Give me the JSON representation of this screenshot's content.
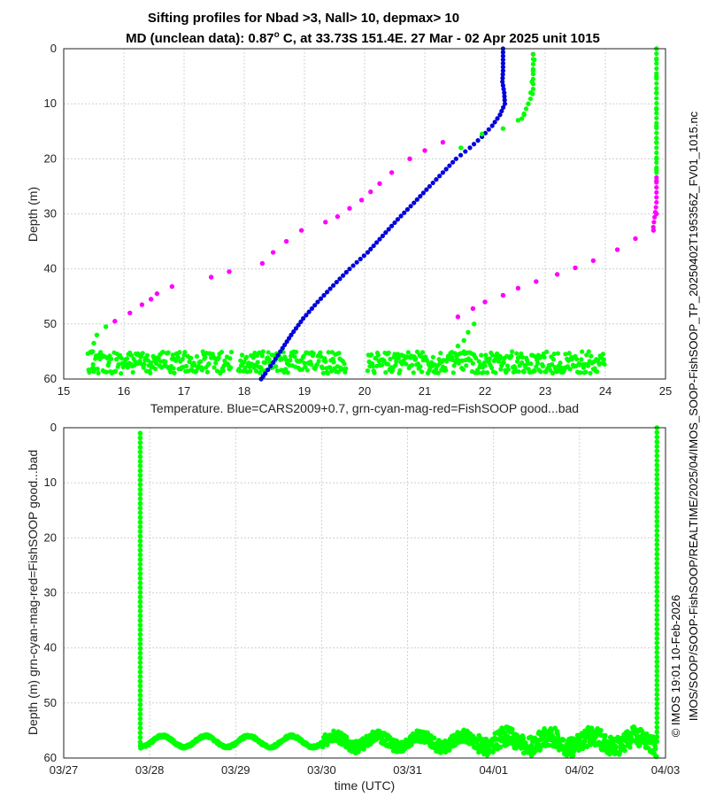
{
  "titles": {
    "line1": "Sifting profiles for Nbad >3, Nall> 10, depmax> 10",
    "line2_prefix": "MD (unclean data): 0.87",
    "line2_degree": "o",
    "line2_suffix": " C, at 33.73S 151.4E. 27 Mar - 02 Apr 2025 unit 1015"
  },
  "side_text": {
    "file_path": "IMOS/SOOP/SOOP-FishSOOP/REALTIME/2025/04/IMOS_SOOP-FishSOOP_TP_20250402T195356Z_FV01_1015.nc",
    "credit": "© IMOS 19:01 10-Feb-2026"
  },
  "colors": {
    "cars": "#0000dd",
    "good": "#00ff00",
    "bad": "#ff00ff",
    "grid": "#c8c8c8"
  },
  "chart_data": [
    {
      "type": "scatter",
      "title": "",
      "xlabel": "Temperature. Blue=CARS2009+0.7, grn-cyan-mag-red=FishSOOP good...bad",
      "ylabel": "Depth (m)",
      "xlim": [
        15,
        25
      ],
      "ylim": [
        60,
        0
      ],
      "xticks": [
        15,
        16,
        17,
        18,
        19,
        20,
        21,
        22,
        23,
        24,
        25
      ],
      "yticks": [
        0,
        10,
        20,
        30,
        40,
        50,
        60
      ],
      "grid": true,
      "series": [
        {
          "color_key": "cars",
          "points": [
            [
              22.3,
              0
            ],
            [
              22.3,
              2
            ],
            [
              22.3,
              4
            ],
            [
              22.29,
              6
            ],
            [
              22.32,
              8
            ],
            [
              22.33,
              10
            ],
            [
              22.25,
              12
            ],
            [
              22.12,
              14
            ],
            [
              21.95,
              16
            ],
            [
              21.75,
              18
            ],
            [
              21.52,
              20
            ],
            [
              21.3,
              22.5
            ],
            [
              21.08,
              25
            ],
            [
              20.82,
              28
            ],
            [
              20.55,
              31
            ],
            [
              20.3,
              34
            ],
            [
              20.05,
              37
            ],
            [
              19.75,
              40
            ],
            [
              19.48,
              43
            ],
            [
              19.22,
              46
            ],
            [
              18.98,
              49
            ],
            [
              18.78,
              52
            ],
            [
              18.6,
              55
            ],
            [
              18.48,
              57
            ],
            [
              18.35,
              59
            ],
            [
              18.28,
              60
            ]
          ]
        },
        {
          "color_key": "bad",
          "points": [
            [
              22.8,
              1
            ],
            [
              24.85,
              24
            ],
            [
              24.85,
              30
            ],
            [
              24.8,
              33
            ],
            [
              24.5,
              34.5
            ],
            [
              24.2,
              36.5
            ],
            [
              23.8,
              38.5
            ],
            [
              23.5,
              39.8
            ],
            [
              23.2,
              41
            ],
            [
              22.85,
              42.3
            ],
            [
              22.55,
              43.5
            ],
            [
              22.3,
              44.8
            ],
            [
              22.0,
              46
            ],
            [
              21.8,
              47.2
            ],
            [
              21.55,
              48.7
            ],
            [
              21.3,
              17
            ],
            [
              21.0,
              18.5
            ],
            [
              20.75,
              20
            ],
            [
              20.45,
              22.5
            ],
            [
              20.25,
              24.5
            ],
            [
              20.1,
              26
            ],
            [
              19.95,
              27.5
            ],
            [
              19.75,
              29
            ],
            [
              19.55,
              30.5
            ],
            [
              19.35,
              31.5
            ],
            [
              18.95,
              33
            ],
            [
              18.7,
              35
            ],
            [
              18.48,
              37
            ],
            [
              18.3,
              39
            ],
            [
              17.75,
              40.5
            ],
            [
              17.45,
              41.5
            ],
            [
              16.8,
              43.2
            ],
            [
              16.55,
              44.5
            ],
            [
              16.45,
              45.5
            ],
            [
              16.3,
              46.5
            ],
            [
              16.1,
              48
            ],
            [
              15.85,
              49.5
            ]
          ]
        },
        {
          "color_key": "good",
          "points": [
            [
              22.82,
              2
            ],
            [
              22.8,
              4
            ],
            [
              22.78,
              6
            ],
            [
              22.76,
              8
            ],
            [
              22.72,
              10
            ],
            [
              22.65,
              12
            ],
            [
              22.55,
              13
            ],
            [
              22.3,
              14.5
            ],
            [
              21.95,
              15.5
            ],
            [
              21.6,
              18
            ],
            [
              21.45,
              56
            ],
            [
              21.55,
              54
            ],
            [
              21.65,
              53
            ],
            [
              21.72,
              51.5
            ],
            [
              21.82,
              50
            ],
            [
              15.7,
              50.5
            ],
            [
              15.55,
              52
            ],
            [
              15.5,
              53.5
            ],
            [
              15.48,
              55
            ],
            [
              24.85,
              0
            ],
            [
              24.85,
              2
            ],
            [
              24.85,
              5
            ],
            [
              24.85,
              8
            ],
            [
              24.85,
              11
            ],
            [
              24.85,
              14
            ],
            [
              24.85,
              17
            ],
            [
              24.85,
              20
            ],
            [
              24.85,
              22
            ]
          ]
        },
        {
          "color_key": "good",
          "band": true,
          "segments": [
            [
              15.4,
              17.8
            ],
            [
              17.9,
              19.7
            ],
            [
              20.05,
              24.0
            ]
          ],
          "depth_range": [
            55,
            59
          ]
        }
      ]
    },
    {
      "type": "scatter",
      "title": "",
      "xlabel": "time (UTC)",
      "ylabel": "Depth (m) grn-cyan-mag-red=FishSOOP good...bad",
      "xlim": [
        "03/27",
        "04/03"
      ],
      "ylim": [
        60,
        0
      ],
      "xticks": [
        "03/27",
        "03/28",
        "03/29",
        "03/30",
        "03/31",
        "04/01",
        "04/02",
        "04/03"
      ],
      "yticks": [
        0,
        10,
        20,
        30,
        40,
        50,
        60
      ],
      "grid": true,
      "series": [
        {
          "color_key": "good",
          "descents": [
            {
              "day": 0.89,
              "from": 1,
              "to": 57.5
            },
            {
              "day": 6.9,
              "from": 0,
              "to": 56.5
            }
          ],
          "bottom_trace": {
            "day_range": [
              0.89,
              6.9
            ],
            "mean_depth": 57,
            "wave_period_days": 0.5,
            "wave_amplitude_m": 1
          }
        }
      ]
    }
  ]
}
